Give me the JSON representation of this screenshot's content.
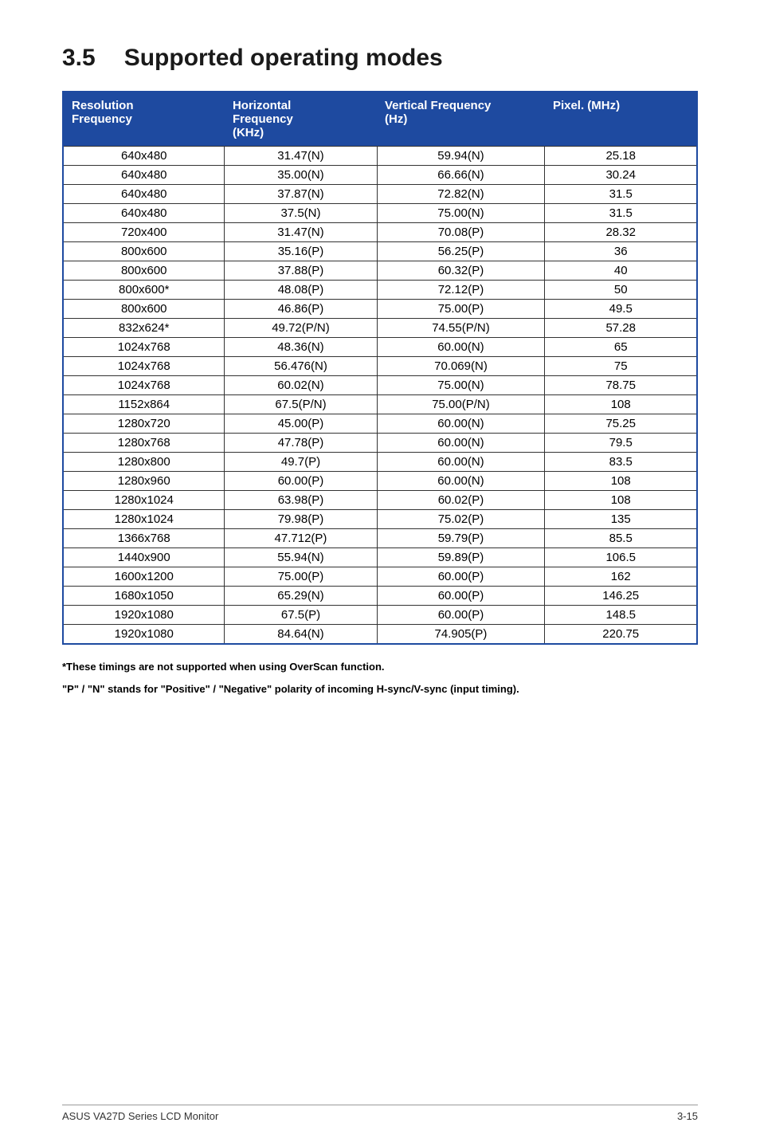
{
  "section": {
    "number": "3.5",
    "title": "Supported operating modes"
  },
  "table": {
    "header_bg": "#1e4aa0",
    "border_color": "#1e4aa0",
    "cell_border": "#333333",
    "columns": [
      "Resolution Frequency",
      "Horizontal Frequency (KHz)",
      "Vertical Frequency (Hz)",
      "Pixel. (MHz)"
    ],
    "rows": [
      [
        "640x480",
        "31.47(N)",
        "59.94(N)",
        "25.18"
      ],
      [
        "640x480",
        "35.00(N)",
        "66.66(N)",
        "30.24"
      ],
      [
        "640x480",
        "37.87(N)",
        "72.82(N)",
        "31.5"
      ],
      [
        "640x480",
        "37.5(N)",
        "75.00(N)",
        "31.5"
      ],
      [
        "720x400",
        "31.47(N)",
        "70.08(P)",
        "28.32"
      ],
      [
        "800x600",
        "35.16(P)",
        "56.25(P)",
        "36"
      ],
      [
        "800x600",
        "37.88(P)",
        "60.32(P)",
        "40"
      ],
      [
        "800x600*",
        "48.08(P)",
        "72.12(P)",
        "50"
      ],
      [
        "800x600",
        "46.86(P)",
        "75.00(P)",
        "49.5"
      ],
      [
        "832x624*",
        "49.72(P/N)",
        "74.55(P/N)",
        "57.28"
      ],
      [
        "1024x768",
        "48.36(N)",
        "60.00(N)",
        "65"
      ],
      [
        "1024x768",
        "56.476(N)",
        "70.069(N)",
        "75"
      ],
      [
        "1024x768",
        "60.02(N)",
        "75.00(N)",
        "78.75"
      ],
      [
        "1152x864",
        "67.5(P/N)",
        "75.00(P/N)",
        "108"
      ],
      [
        "1280x720",
        "45.00(P)",
        "60.00(N)",
        "75.25"
      ],
      [
        "1280x768",
        "47.78(P)",
        "60.00(N)",
        "79.5"
      ],
      [
        "1280x800",
        "49.7(P)",
        "60.00(N)",
        "83.5"
      ],
      [
        "1280x960",
        "60.00(P)",
        "60.00(N)",
        "108"
      ],
      [
        "1280x1024",
        "63.98(P)",
        "60.02(P)",
        "108"
      ],
      [
        "1280x1024",
        "79.98(P)",
        "75.02(P)",
        "135"
      ],
      [
        "1366x768",
        "47.712(P)",
        "59.79(P)",
        "85.5"
      ],
      [
        "1440x900",
        "55.94(N)",
        "59.89(P)",
        "106.5"
      ],
      [
        "1600x1200",
        "75.00(P)",
        "60.00(P)",
        "162"
      ],
      [
        "1680x1050",
        "65.29(N)",
        "60.00(P)",
        "146.25"
      ],
      [
        "1920x1080",
        "67.5(P)",
        "60.00(P)",
        "148.5"
      ],
      [
        "1920x1080",
        "84.64(N)",
        "74.905(P)",
        "220.75"
      ]
    ]
  },
  "notes": {
    "line1": "*These timings are not supported when using OverScan function.",
    "line2": "\"P\" / \"N\" stands for \"Positive\" / \"Negative\" polarity of incoming H-sync/V-sync (input timing)."
  },
  "footer": {
    "left": "ASUS VA27D Series LCD Monitor",
    "right": "3-15"
  }
}
